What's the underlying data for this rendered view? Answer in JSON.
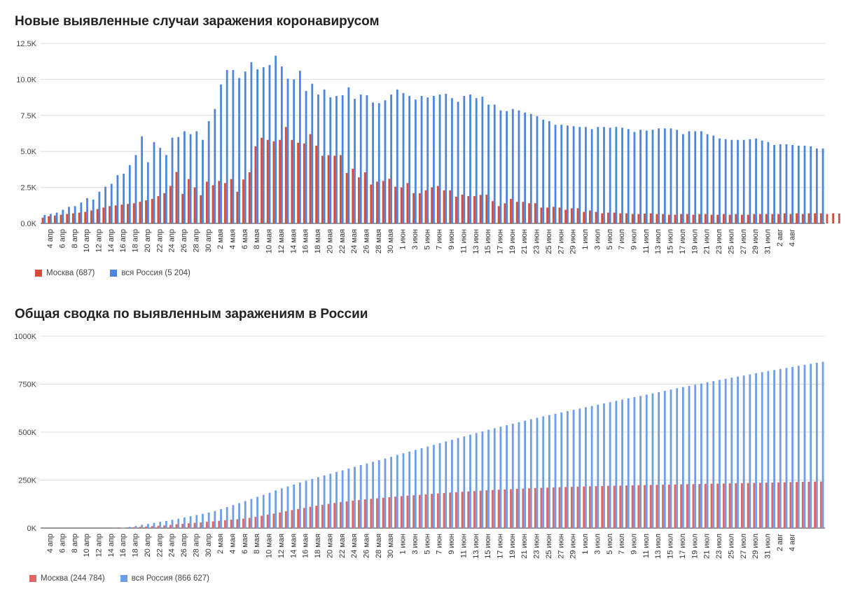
{
  "charts": [
    {
      "title": "Новые выявленные случаи заражения коронавирусом",
      "type": "bar",
      "ylim": [
        0,
        12500
      ],
      "yticks": [
        "0.0K",
        "2.5K",
        "5.0K",
        "7.5K",
        "10.0K",
        "12.5K"
      ],
      "ytick_values": [
        0,
        2500,
        5000,
        7500,
        10000,
        12500
      ],
      "x_labels": [
        "4 апр",
        "6 апр",
        "8 апр",
        "10 апр",
        "12 апр",
        "14 апр",
        "16 апр",
        "18 апр",
        "20 апр",
        "22 апр",
        "24 апр",
        "26 апр",
        "28 апр",
        "30 апр",
        "2 мая",
        "4 мая",
        "6 мая",
        "8 мая",
        "10 мая",
        "12 мая",
        "14 мая",
        "16 мая",
        "18 мая",
        "20 мая",
        "22 мая",
        "24 мая",
        "26 мая",
        "28 мая",
        "30 мая",
        "1 июн",
        "3 июн",
        "5 июн",
        "7 июн",
        "9 июн",
        "11 июн",
        "13 июн",
        "15 июн",
        "17 июн",
        "19 июн",
        "21 июн",
        "23 июн",
        "25 июн",
        "27 июн",
        "29 июн",
        "1 июл",
        "3 июл",
        "5 июл",
        "7 июл",
        "9 июл",
        "11 июл",
        "13 июл",
        "15 июл",
        "17 июл",
        "19 июл",
        "21 июл",
        "23 июл",
        "25 июл",
        "27 июл",
        "29 июл",
        "31 июл",
        "2 авг",
        "4 авг"
      ],
      "series_colors": [
        "#d94a38",
        "#4a86e0"
      ],
      "legend": [
        {
          "label": "Москва (687)",
          "color": "#d94a38"
        },
        {
          "label": "вся Россия (5 204)",
          "color": "#4a86e0"
        }
      ]
    },
    {
      "title": "Общая сводка по выявленным заражениям в России",
      "type": "bar",
      "ylim": [
        0,
        1000000
      ],
      "yticks": [
        "0K",
        "250K",
        "500K",
        "750K",
        "1000K"
      ],
      "ytick_values": [
        0,
        250000,
        500000,
        750000,
        1000000
      ],
      "x_labels": [
        "4 апр",
        "6 апр",
        "8 апр",
        "10 апр",
        "12 апр",
        "14 апр",
        "16 апр",
        "18 апр",
        "20 апр",
        "22 апр",
        "24 апр",
        "26 апр",
        "28 апр",
        "30 апр",
        "2 мая",
        "4 мая",
        "6 мая",
        "8 мая",
        "10 мая",
        "12 мая",
        "14 мая",
        "16 мая",
        "18 мая",
        "20 мая",
        "22 мая",
        "24 мая",
        "26 мая",
        "28 мая",
        "30 мая",
        "1 июн",
        "3 июн",
        "5 июн",
        "7 июн",
        "9 июн",
        "11 июн",
        "13 июн",
        "15 июн",
        "17 июн",
        "19 июн",
        "21 июн",
        "23 июн",
        "25 июн",
        "27 июн",
        "29 июн",
        "1 июл",
        "3 июл",
        "5 июл",
        "7 июл",
        "9 июл",
        "11 июл",
        "13 июл",
        "15 июл",
        "17 июл",
        "19 июл",
        "21 июл",
        "23 июл",
        "25 июл",
        "27 июл",
        "29 июл",
        "31 июл",
        "2 авг",
        "4 авг"
      ],
      "series_colors": [
        "#e06666",
        "#6d9eeb"
      ],
      "legend": [
        {
          "label": "Москва (244 784)",
          "color": "#e06666"
        },
        {
          "label": "вся Россия (866 627)",
          "color": "#6d9eeb"
        }
      ]
    }
  ],
  "chart_data": [
    {
      "type": "bar",
      "title": "Новые выявленные случаи заражения коронавирусом",
      "x_start": "3 апр",
      "x_end": "5 авг",
      "ylim": [
        0,
        12500
      ],
      "series": [
        {
          "name": "Москва (687)",
          "values": [
            400,
            500,
            550,
            600,
            650,
            700,
            750,
            800,
            900,
            1000,
            1100,
            1200,
            1250,
            1300,
            1350,
            1400,
            1500,
            1600,
            1700,
            1900,
            2100,
            2600,
            3570,
            2050,
            3080,
            2500,
            1960,
            2900,
            2650,
            2950,
            2800,
            3080,
            2200,
            3050,
            3550,
            5360,
            5950,
            5800,
            5700,
            5800,
            6700,
            5800,
            5600,
            5550,
            6200,
            5400,
            4700,
            4740,
            4700,
            4740,
            3500,
            3800,
            3200,
            3550,
            2700,
            2900,
            2950,
            3100,
            2550,
            2500,
            2800,
            2100,
            2100,
            2300,
            2500,
            2600,
            2300,
            2300,
            1850,
            2000,
            1900,
            1900,
            1980,
            2000,
            1550,
            1200,
            1400,
            1700,
            1500,
            1500,
            1400,
            1400,
            1100,
            1100,
            1150,
            1100,
            950,
            1050,
            1050,
            800,
            900,
            800,
            700,
            750,
            750,
            700,
            700,
            650,
            650,
            680,
            700,
            650,
            650,
            600,
            600,
            650,
            650,
            600,
            650,
            650,
            600,
            600,
            650,
            600,
            650,
            600,
            600,
            650,
            650,
            650,
            650,
            650,
            700,
            650,
            700,
            650,
            700,
            700,
            700,
            650,
            700,
            687
          ]
        },
        {
          "name": "вся Россия (5 204)",
          "values": [
            582,
            660,
            750,
            950,
            1150,
            1200,
            1450,
            1750,
            1650,
            2200,
            2550,
            2750,
            3350,
            3450,
            4050,
            4750,
            6050,
            4250,
            5650,
            5250,
            4750,
            5950,
            6000,
            6400,
            6200,
            6400,
            5800,
            7100,
            7950,
            9650,
            10650,
            10650,
            10100,
            10550,
            11200,
            10700,
            10850,
            11000,
            11650,
            10900,
            10050,
            10000,
            10600,
            9200,
            9700,
            8950,
            9300,
            8750,
            8850,
            8900,
            9450,
            8650,
            8950,
            8900,
            8400,
            8350,
            8550,
            8950,
            9300,
            9050,
            8850,
            8600,
            8850,
            8750,
            8850,
            8950,
            9000,
            8700,
            8450,
            8850,
            8950,
            8700,
            8800,
            8250,
            8250,
            7850,
            7800,
            7950,
            7850,
            7700,
            7600,
            7450,
            7200,
            7100,
            6850,
            6850,
            6800,
            6750,
            6700,
            6700,
            6550,
            6700,
            6700,
            6650,
            6700,
            6650,
            6550,
            6350,
            6500,
            6450,
            6500,
            6600,
            6600,
            6600,
            6500,
            6200,
            6400,
            6400,
            6400,
            6200,
            6100,
            5900,
            5850,
            5800,
            5800,
            5800,
            5850,
            5900,
            5750,
            5650,
            5450,
            5500,
            5500,
            5450,
            5400,
            5400,
            5350,
            5200,
            5204
          ]
        }
      ]
    },
    {
      "type": "bar",
      "title": "Общая сводка по выявленным заражениям в России",
      "x_start": "3 апр",
      "x_end": "5 авг",
      "ylim": [
        0,
        1000000
      ],
      "series": [
        {
          "name": "Москва (244 784)",
          "values": []
        },
        {
          "name": "вся Россия (866 627)",
          "values": []
        }
      ]
    }
  ]
}
